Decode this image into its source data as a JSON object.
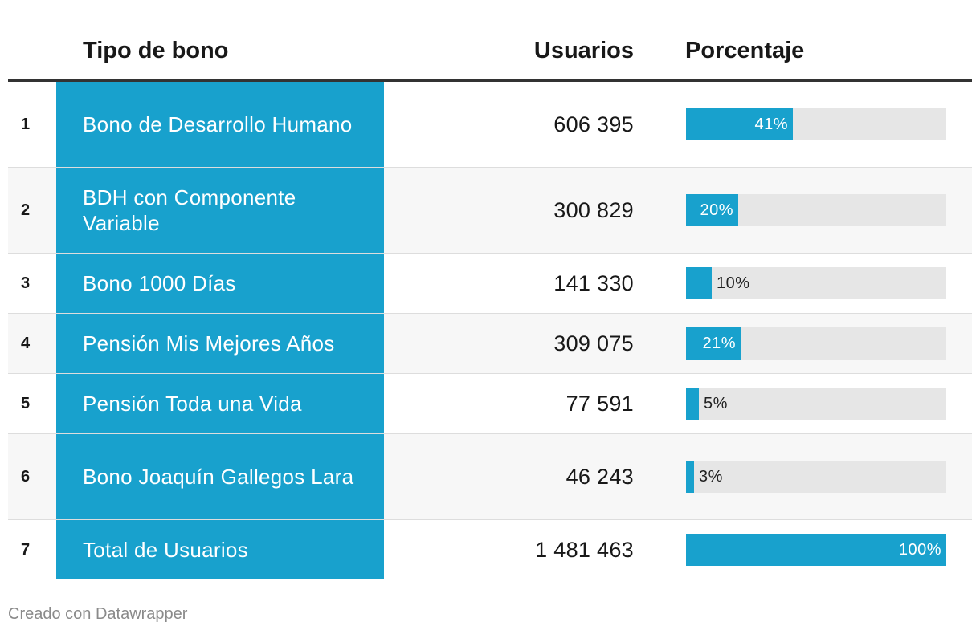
{
  "header": {
    "type_label": "Tipo de bono",
    "users_label": "Usuarios",
    "pct_label": "Porcentaje"
  },
  "colors": {
    "accent": "#18a1cd",
    "bar_track": "#e6e6e6",
    "header_rule": "#333333"
  },
  "rows": [
    {
      "index": "1",
      "type": "Bono de Desarrollo Humano",
      "users": "606 395",
      "pct_label": "41%",
      "pct": 41
    },
    {
      "index": "2",
      "type": "BDH con Componente Variable",
      "users": "300 829",
      "pct_label": "20%",
      "pct": 20
    },
    {
      "index": "3",
      "type": "Bono 1000 Días",
      "users": "141 330",
      "pct_label": "10%",
      "pct": 10
    },
    {
      "index": "4",
      "type": "Pensión Mis Mejores Años",
      "users": "309 075",
      "pct_label": "21%",
      "pct": 21
    },
    {
      "index": "5",
      "type": "Pensión Toda una Vida",
      "users": "77 591",
      "pct_label": "5%",
      "pct": 5
    },
    {
      "index": "6",
      "type": "Bono Joaquín Gallegos Lara",
      "users": "46 243",
      "pct_label": "3%",
      "pct": 3
    },
    {
      "index": "7",
      "type": "Total de Usuarios",
      "users": "1 481 463",
      "pct_label": "100%",
      "pct": 100
    }
  ],
  "chart_data": {
    "type": "table",
    "columns": [
      "Tipo de bono",
      "Usuarios",
      "Porcentaje"
    ],
    "categories": [
      "Bono de Desarrollo Humano",
      "BDH con Componente Variable",
      "Bono 1000 Días",
      "Pensión Mis Mejores Años",
      "Pensión Toda una Vida",
      "Bono Joaquín Gallegos Lara",
      "Total de Usuarios"
    ],
    "series": [
      {
        "name": "Usuarios",
        "values": [
          606395,
          300829,
          141330,
          309075,
          77591,
          46243,
          1481463
        ]
      },
      {
        "name": "Porcentaje",
        "values": [
          41,
          20,
          10,
          21,
          5,
          3,
          100
        ]
      }
    ],
    "ylim": [
      0,
      100
    ],
    "grid": false
  },
  "footer": {
    "credit": "Creado con Datawrapper"
  }
}
